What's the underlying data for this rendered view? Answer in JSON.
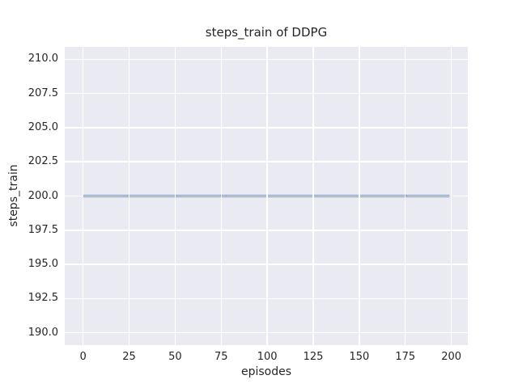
{
  "figure": {
    "background": "#ffffff"
  },
  "chart_data": {
    "type": "line",
    "title": "steps_train of DDPG",
    "xlabel": "episodes",
    "ylabel": "steps_train",
    "x_ticks": [
      0,
      25,
      50,
      75,
      100,
      125,
      150,
      175,
      200
    ],
    "x_tick_labels": [
      "0",
      "25",
      "50",
      "75",
      "100",
      "125",
      "150",
      "175",
      "200"
    ],
    "y_ticks": [
      190.0,
      192.5,
      195.0,
      197.5,
      200.0,
      202.5,
      205.0,
      207.5,
      210.0
    ],
    "y_tick_labels": [
      "190.0",
      "192.5",
      "195.0",
      "197.5",
      "200.0",
      "202.5",
      "205.0",
      "207.5",
      "210.0"
    ],
    "xlim": [
      -9.95,
      208.95
    ],
    "ylim": [
      189.1,
      210.9
    ],
    "grid": true,
    "legend": false,
    "series": [
      {
        "name": "steps_train",
        "x": [
          0,
          199
        ],
        "y": [
          200,
          200
        ],
        "color": "#4c72b0",
        "line_width": 2.5
      }
    ],
    "style": {
      "plot_background": "#eaeaf2",
      "grid_color": "#ffffff",
      "text_color": "#262626"
    }
  }
}
